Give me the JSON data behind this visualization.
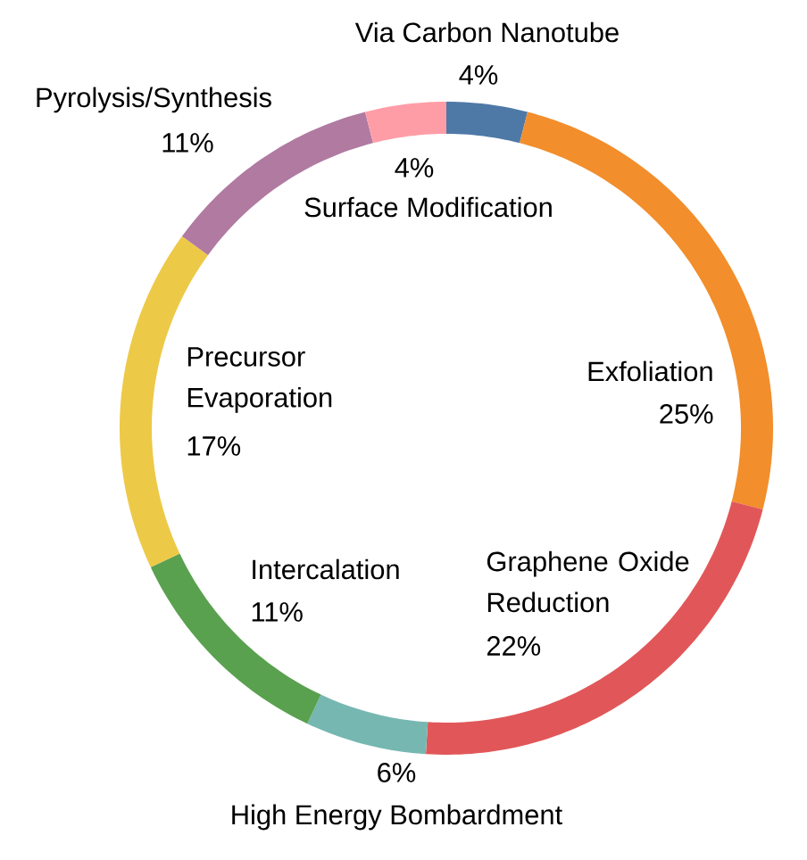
{
  "chart_data": {
    "type": "donut",
    "categories": [
      "Via Carbon Nanotube",
      "Exfoliation",
      "Graphene Oxide Reduction",
      "High Energy Bombardment",
      "Intercalation",
      "Precursor Evaporation",
      "Pyrolysis/Synthesis",
      "Surface Modification"
    ],
    "values": [
      4,
      25,
      22,
      6,
      11,
      17,
      11,
      4
    ],
    "value_labels": [
      "4%",
      "25%",
      "22%",
      "6%",
      "11%",
      "17%",
      "11%",
      "4%"
    ],
    "colors": [
      "#4e79a7",
      "#f28e2b",
      "#e15759",
      "#76b7b2",
      "#59a14f",
      "#edc948",
      "#b07aa1",
      "#ff9da7"
    ]
  }
}
